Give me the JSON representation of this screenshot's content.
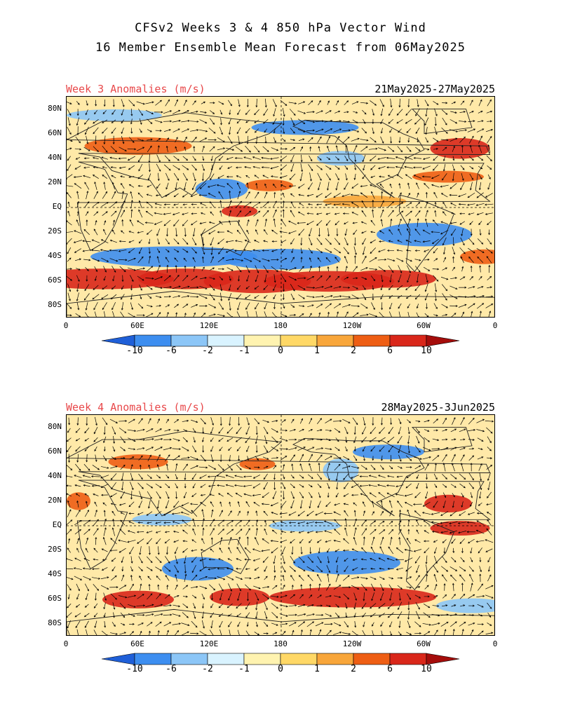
{
  "title": {
    "line1": "CFSv2 Weeks 3 & 4 850 hPa Vector Wind",
    "line2": "16 Member Ensemble Mean Forecast from 06May2025"
  },
  "panels": [
    {
      "label": "Week 3 Anomalies (m/s)",
      "dates": "21May2025-27May2025"
    },
    {
      "label": "Week 4 Anomalies (m/s)",
      "dates": "28May2025-3Jun2025"
    }
  ],
  "axes": {
    "lat_labels": [
      "80N",
      "60N",
      "40N",
      "20N",
      "EQ",
      "20S",
      "40S",
      "60S",
      "80S"
    ],
    "lat_values": [
      80,
      60,
      40,
      20,
      0,
      -20,
      -40,
      -60,
      -80
    ],
    "lon_labels": [
      "0",
      "60E",
      "120E",
      "180",
      "120W",
      "60W",
      "0"
    ],
    "lon_values": [
      0,
      60,
      120,
      180,
      240,
      300,
      360
    ]
  },
  "colorbar": {
    "labels": [
      "-10",
      "-6",
      "-2",
      "-1",
      "0",
      "1",
      "2",
      "6",
      "10"
    ],
    "colors": [
      "#1f5fd8",
      "#3d8ef0",
      "#8cc6f7",
      "#d9f3ff",
      "#fff3b0",
      "#ffd866",
      "#f8a63a",
      "#ee5e14",
      "#d9271a",
      "#a50d0b"
    ]
  },
  "colors": {
    "label_red": "#e8484a",
    "background_neutral": "#ffe9a8"
  }
}
